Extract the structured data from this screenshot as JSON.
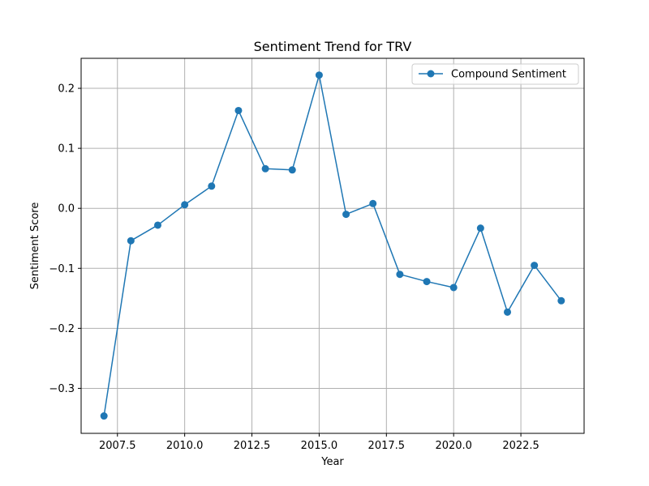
{
  "chart_data": {
    "type": "line",
    "title": "Sentiment Trend for TRV",
    "xlabel": "Year",
    "ylabel": "Sentiment Score",
    "xlim": [
      2006.15,
      2024.85
    ],
    "ylim": [
      -0.375,
      0.25
    ],
    "x_ticks": [
      2007.5,
      2010.0,
      2012.5,
      2015.0,
      2017.5,
      2020.0,
      2022.5
    ],
    "x_tick_labels": [
      "2007.5",
      "2010.0",
      "2012.5",
      "2015.0",
      "2017.5",
      "2020.0",
      "2022.5"
    ],
    "y_ticks": [
      -0.3,
      -0.2,
      -0.1,
      0.0,
      0.1,
      0.2
    ],
    "y_tick_labels": [
      "−0.3",
      "−0.2",
      "−0.1",
      "0.0",
      "0.1",
      "0.2"
    ],
    "grid": true,
    "legend_position": "top-right",
    "series": [
      {
        "name": "Compound Sentiment",
        "color": "#1f77b4",
        "marker": "circle",
        "x": [
          2007,
          2008,
          2009,
          2010,
          2011,
          2012,
          2013,
          2014,
          2015,
          2016,
          2017,
          2018,
          2019,
          2020,
          2021,
          2022,
          2023,
          2024
        ],
        "y": [
          -0.346,
          -0.054,
          -0.028,
          0.006,
          0.037,
          0.163,
          0.066,
          0.064,
          0.222,
          -0.01,
          0.008,
          -0.11,
          -0.122,
          -0.132,
          -0.033,
          -0.173,
          -0.095,
          -0.154
        ]
      }
    ]
  }
}
